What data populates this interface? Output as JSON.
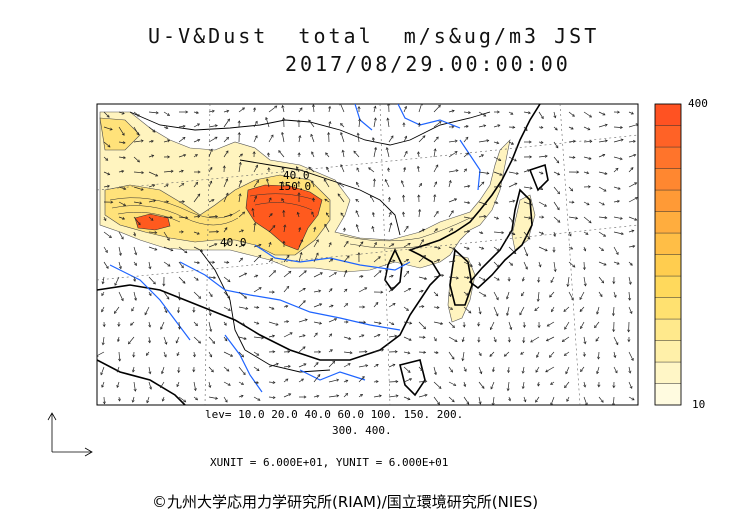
{
  "title": {
    "line1": "U-V&Dust  total  m/s&ug/m3 JST",
    "line2": "2017/08/29.00:00:00"
  },
  "contour_labels": [
    "40.0",
    "150.0",
    "40.0"
  ],
  "levels": {
    "line1": "lev= 10.0 20.0 40.0 60.0 100. 150. 200.",
    "line2": "300. 400."
  },
  "units_text": "XUNIT = 6.000E+01, YUNIT = 6.000E+01",
  "colorbar": {
    "max_label": "400",
    "min_label": "10",
    "colors": [
      "#fffbe0",
      "#fff6c6",
      "#fff0a9",
      "#ffe98c",
      "#ffe170",
      "#ffd95c",
      "#ffcd4f",
      "#ffbe46",
      "#ffad3e",
      "#ff9a36",
      "#ff8730",
      "#ff742b",
      "#ff6226",
      "#ff5222"
    ]
  },
  "colors": {
    "dust_low": "#fff4bf",
    "dust_mid": "#ffe27a",
    "dust_high": "#ff5a1e",
    "coast": "#000000",
    "rivers": "#1e64ff"
  },
  "copyright": "©九州大学応用力学研究所(RIAM)/国立環境研究所(NIES)"
}
